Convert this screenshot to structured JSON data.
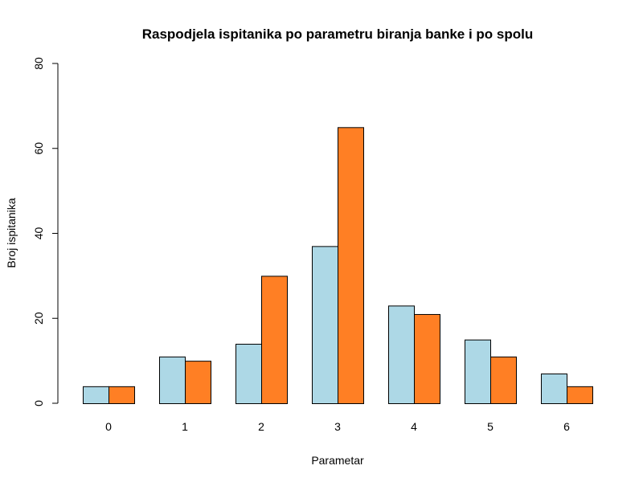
{
  "chart_data": {
    "type": "bar",
    "title": "Raspodjela ispitanika po parametru biranja banke i po spolu",
    "xlabel": "Parametar",
    "ylabel": "Broj ispitanika",
    "categories": [
      "0",
      "1",
      "2",
      "3",
      "4",
      "5",
      "6"
    ],
    "series": [
      {
        "values": [
          4,
          11,
          14,
          37,
          23,
          15,
          7
        ],
        "color": "#ADD8E6"
      },
      {
        "values": [
          4,
          10,
          30,
          65,
          21,
          11,
          4
        ],
        "color": "#FF7F24"
      }
    ],
    "ylim": [
      0,
      80
    ],
    "yticks": [
      0,
      20,
      40,
      60,
      80
    ],
    "grid": false,
    "legend": "none"
  }
}
